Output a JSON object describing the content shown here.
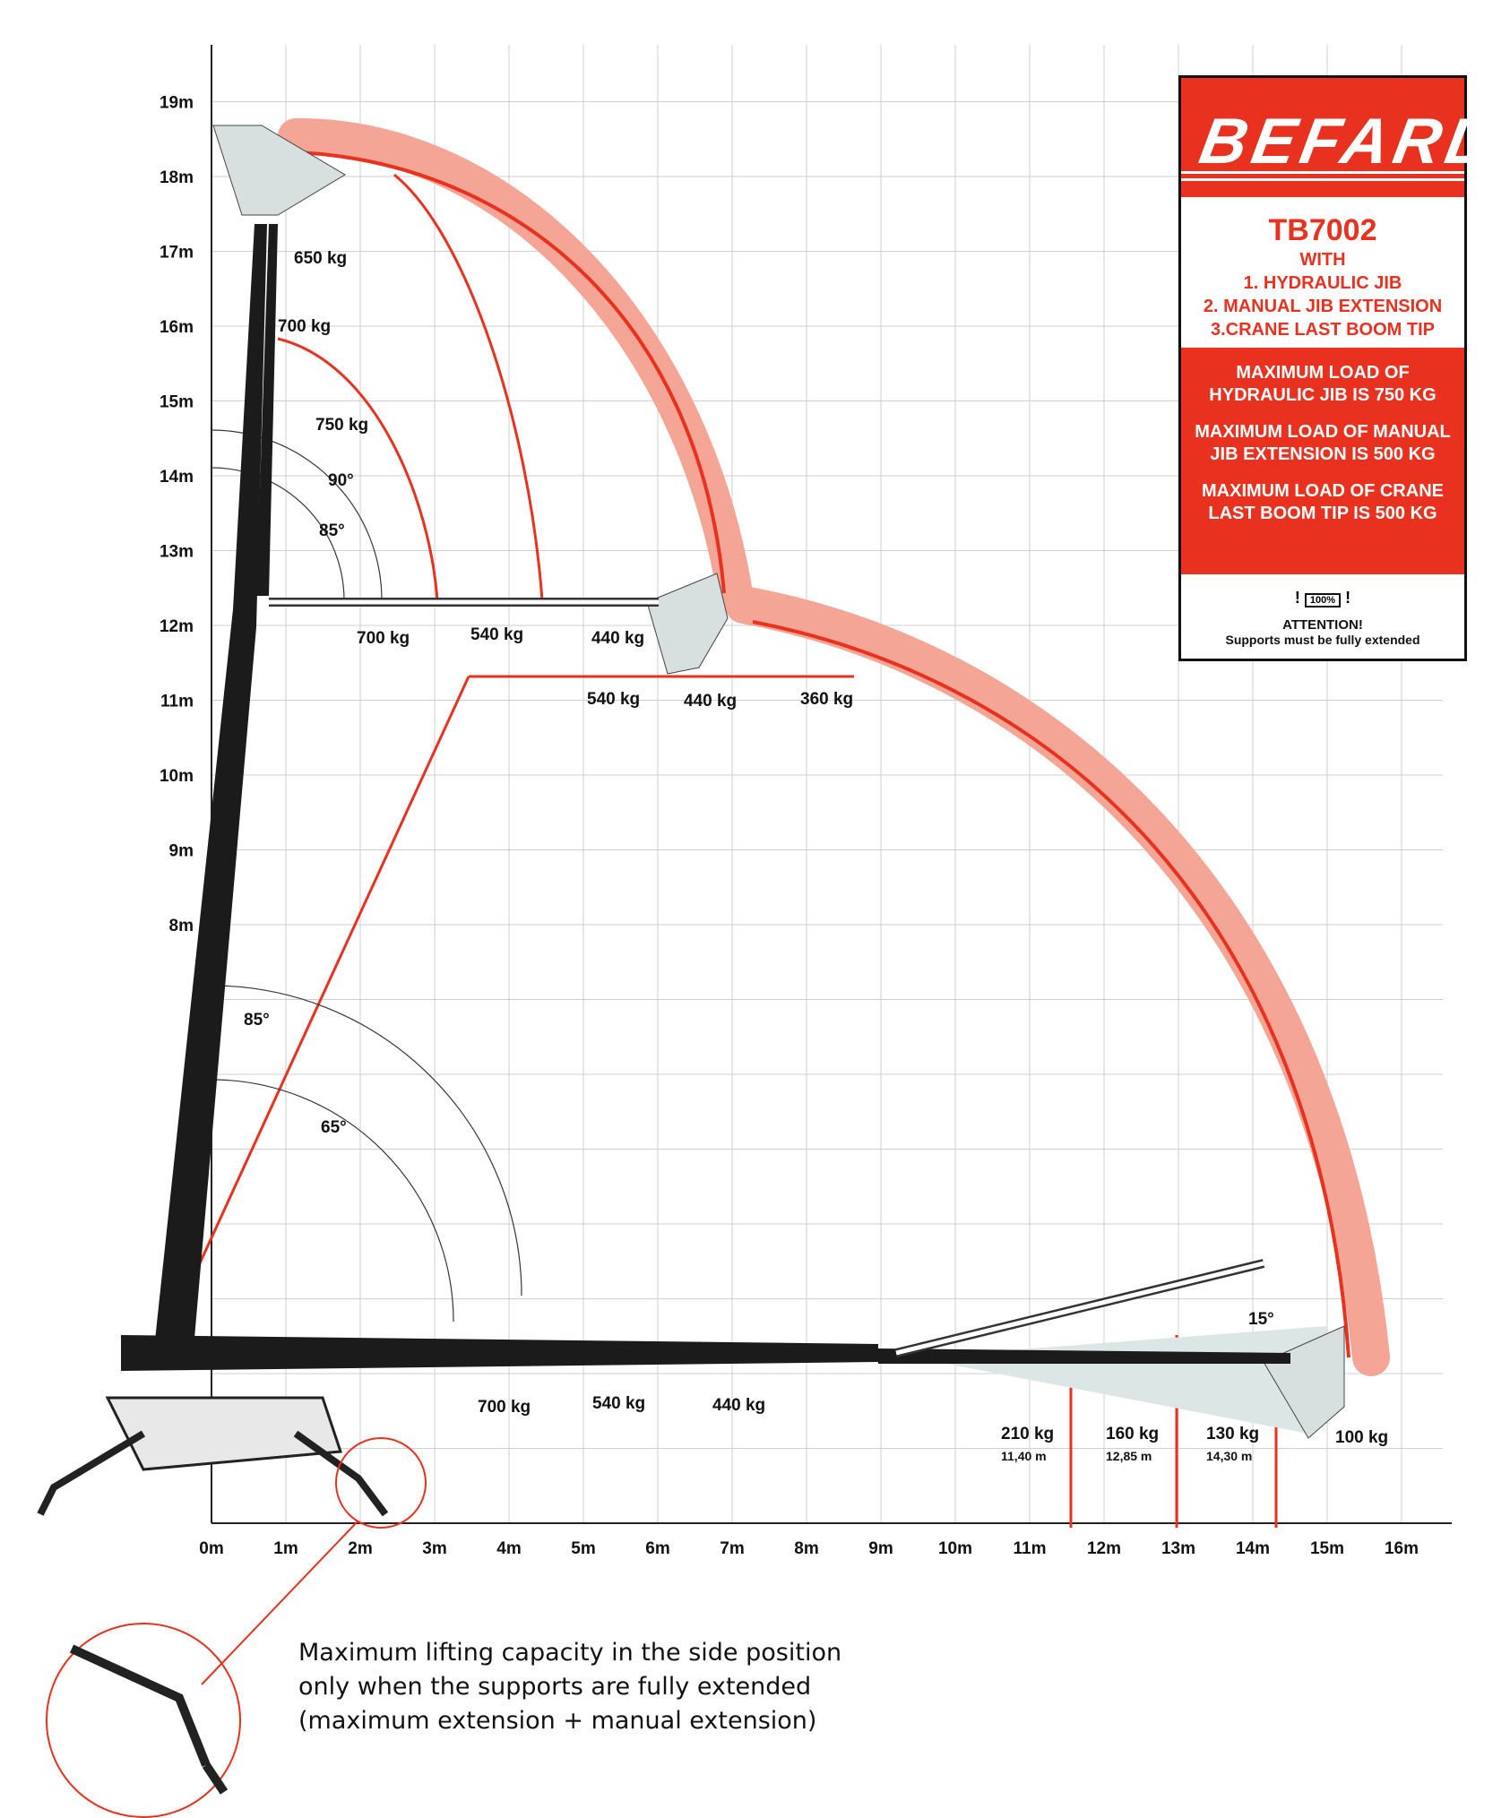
{
  "brand": {
    "logo": "BEFARD",
    "model": "TB7002",
    "with": "WITH",
    "lines": [
      "1. HYDRAULIC JIB",
      "2. MANUAL JIB EXTENSION",
      "3.CRANE LAST BOOM TIP"
    ],
    "notices": [
      "MAXIMUM LOAD OF HYDRAULIC JIB IS 750 KG",
      "MAXIMUM LOAD OF MANUAL JIB EXTENSION IS 500 KG",
      "MAXIMUM LOAD OF CRANE LAST BOOM TIP IS 500 KG"
    ],
    "attention_icon": "100%",
    "attention_title": "ATTENTION!",
    "attention_text": "Supports must be fully extended",
    "accent": "#e8321f"
  },
  "footnote": [
    "Maximum lifting capacity in the side position",
    "only when the supports are fully extended",
    "(maximum extension + manual extension)"
  ],
  "chart_data": {
    "type": "load-diagram",
    "x_ticks": [
      "0m",
      "1m",
      "2m",
      "3m",
      "4m",
      "5m",
      "6m",
      "7m",
      "8m",
      "9m",
      "10m",
      "11m",
      "12m",
      "13m",
      "14m",
      "15m",
      "16m"
    ],
    "y_ticks": [
      "8m",
      "9m",
      "10m",
      "11m",
      "12m",
      "13m",
      "14m",
      "15m",
      "16m",
      "17m",
      "18m",
      "19m"
    ],
    "xlim": [
      0,
      16.5
    ],
    "ylim": [
      0,
      19.5
    ],
    "grid": true,
    "envelope_color": "#f5a595",
    "line_color": "#e8321f",
    "angles": [
      "90°",
      "85°",
      "85°",
      "65°",
      "15°"
    ],
    "capacities": {
      "vertical_boom": [
        "650 kg",
        "700 kg",
        "750 kg"
      ],
      "jib_upper": [
        "700 kg",
        "540 kg",
        "440 kg"
      ],
      "jib_lower": [
        "540 kg",
        "440 kg",
        "360 kg"
      ],
      "horizontal": [
        "700 kg",
        "540 kg",
        "440 kg"
      ],
      "extension": [
        {
          "load": "210 kg",
          "radius": "11,40 m"
        },
        {
          "load": "160 kg",
          "radius": "12,85 m"
        },
        {
          "load": "130 kg",
          "radius": "14,30 m"
        },
        {
          "load": "100 kg",
          "radius": ""
        }
      ]
    }
  }
}
